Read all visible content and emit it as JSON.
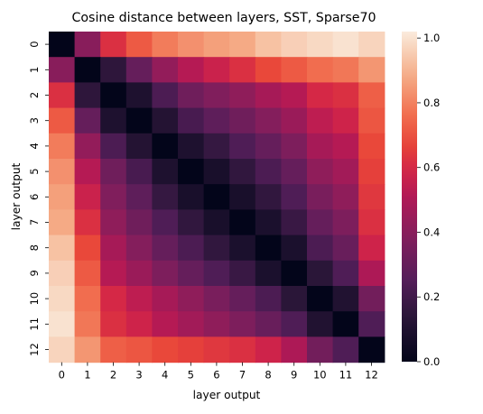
{
  "chart_data": {
    "type": "heatmap",
    "title": "Cosine distance between layers, SST, Sparse70",
    "xlabel": "layer output",
    "ylabel": "layer output",
    "x_categories": [
      "0",
      "1",
      "2",
      "3",
      "4",
      "5",
      "6",
      "7",
      "8",
      "9",
      "10",
      "11",
      "12"
    ],
    "y_categories": [
      "0",
      "1",
      "2",
      "3",
      "4",
      "5",
      "6",
      "7",
      "8",
      "9",
      "10",
      "11",
      "12"
    ],
    "colormap": "rocket",
    "colorbar": {
      "range": [
        0,
        1.02
      ],
      "ticks": [
        "0.0",
        "0.2",
        "0.4",
        "0.6",
        "0.8",
        "1.0"
      ]
    },
    "values": [
      [
        0.0,
        0.4,
        0.62,
        0.72,
        0.79,
        0.83,
        0.86,
        0.88,
        0.93,
        0.96,
        0.98,
        1.0,
        0.97
      ],
      [
        0.4,
        0.0,
        0.15,
        0.3,
        0.43,
        0.52,
        0.57,
        0.62,
        0.68,
        0.72,
        0.76,
        0.78,
        0.84
      ],
      [
        0.62,
        0.15,
        0.0,
        0.1,
        0.23,
        0.33,
        0.38,
        0.42,
        0.48,
        0.52,
        0.6,
        0.62,
        0.73
      ],
      [
        0.72,
        0.3,
        0.1,
        0.0,
        0.12,
        0.22,
        0.28,
        0.33,
        0.39,
        0.45,
        0.54,
        0.58,
        0.71
      ],
      [
        0.79,
        0.43,
        0.23,
        0.12,
        0.0,
        0.1,
        0.17,
        0.24,
        0.3,
        0.37,
        0.48,
        0.52,
        0.68
      ],
      [
        0.83,
        0.52,
        0.33,
        0.22,
        0.1,
        0.0,
        0.08,
        0.16,
        0.23,
        0.3,
        0.42,
        0.47,
        0.66
      ],
      [
        0.86,
        0.57,
        0.38,
        0.28,
        0.17,
        0.08,
        0.0,
        0.08,
        0.16,
        0.24,
        0.36,
        0.42,
        0.64
      ],
      [
        0.88,
        0.62,
        0.42,
        0.33,
        0.24,
        0.16,
        0.08,
        0.0,
        0.09,
        0.18,
        0.3,
        0.37,
        0.62
      ],
      [
        0.93,
        0.68,
        0.48,
        0.39,
        0.3,
        0.23,
        0.16,
        0.09,
        0.0,
        0.09,
        0.23,
        0.31,
        0.58
      ],
      [
        0.96,
        0.72,
        0.52,
        0.45,
        0.37,
        0.3,
        0.24,
        0.18,
        0.09,
        0.0,
        0.14,
        0.24,
        0.5
      ],
      [
        0.98,
        0.76,
        0.6,
        0.54,
        0.48,
        0.42,
        0.36,
        0.3,
        0.23,
        0.14,
        0.0,
        0.11,
        0.34
      ],
      [
        1.0,
        0.78,
        0.62,
        0.58,
        0.52,
        0.47,
        0.42,
        0.37,
        0.31,
        0.24,
        0.11,
        0.0,
        0.24
      ],
      [
        0.97,
        0.84,
        0.73,
        0.71,
        0.68,
        0.66,
        0.64,
        0.62,
        0.58,
        0.5,
        0.34,
        0.24,
        0.0
      ]
    ]
  }
}
